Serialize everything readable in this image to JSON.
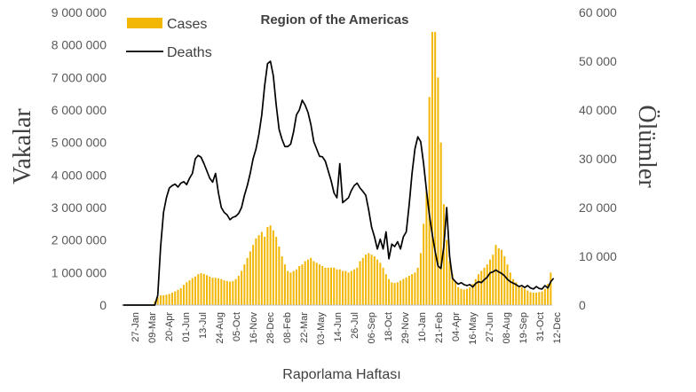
{
  "chart_data": {
    "type": "bar+line",
    "title": "Region of the Americas",
    "xlabel": "Raporlama Haftası",
    "ylabel": "Vakalar",
    "y2label": "Ölümler",
    "ylim": [
      0,
      9000000
    ],
    "y2lim": [
      0,
      60000
    ],
    "y_ticks": [
      "0",
      "1 000 000",
      "2 000 000",
      "3 000 000",
      "4 000 000",
      "5 000 000",
      "6 000 000",
      "7 000 000",
      "8 000 000",
      "9 000 000"
    ],
    "y2_ticks": [
      "0",
      "10 000",
      "20 000",
      "30 000",
      "40 000",
      "50 000",
      "60 000"
    ],
    "x_tick_labels": [
      "27-Jan",
      "09-Mar",
      "20-Apr",
      "01-Jun",
      "13-Jul",
      "24-Aug",
      "05-Oct",
      "16-Nov",
      "28-Dec",
      "08-Feb",
      "22-Mar",
      "03-May",
      "14-Jun",
      "26-Jul",
      "06-Sep",
      "18-Oct",
      "29-Nov",
      "10-Jan",
      "21-Feb",
      "04-Apr",
      "16-May",
      "27-Jun",
      "08-Aug",
      "19-Sep",
      "31-Oct",
      "12-Dec"
    ],
    "colors": {
      "cases": "#F2B705",
      "deaths": "#000000"
    },
    "series": [
      {
        "name": "Cases",
        "kind": "bar",
        "values": [
          0,
          0,
          0,
          0,
          0,
          0,
          0,
          0,
          0,
          0,
          0,
          120000,
          240000,
          300000,
          300000,
          320000,
          340000,
          380000,
          420000,
          470000,
          520000,
          620000,
          700000,
          760000,
          830000,
          880000,
          950000,
          980000,
          960000,
          920000,
          880000,
          840000,
          840000,
          820000,
          800000,
          760000,
          740000,
          720000,
          740000,
          800000,
          900000,
          1050000,
          1250000,
          1450000,
          1650000,
          1850000,
          2050000,
          2150000,
          2250000,
          2100000,
          2400000,
          2450000,
          2300000,
          2100000,
          1800000,
          1500000,
          1250000,
          1050000,
          1000000,
          1050000,
          1100000,
          1200000,
          1250000,
          1350000,
          1400000,
          1450000,
          1350000,
          1300000,
          1250000,
          1200000,
          1150000,
          1150000,
          1150000,
          1150000,
          1100000,
          1100000,
          1050000,
          1050000,
          1000000,
          1050000,
          1100000,
          1150000,
          1350000,
          1450000,
          1550000,
          1600000,
          1550000,
          1500000,
          1400000,
          1300000,
          1150000,
          950000,
          800000,
          700000,
          680000,
          700000,
          750000,
          800000,
          850000,
          900000,
          950000,
          1000000,
          1150000,
          1600000,
          2500000,
          3500000,
          6400000,
          8400000,
          8400000,
          7000000,
          5000000,
          3100000,
          2000000,
          1350000,
          950000,
          700000,
          550000,
          500000,
          480000,
          500000,
          550000,
          650000,
          800000,
          950000,
          1050000,
          1150000,
          1250000,
          1400000,
          1550000,
          1850000,
          1750000,
          1700000,
          1500000,
          1250000,
          1000000,
          800000,
          700000,
          600000,
          550000,
          500000,
          450000,
          400000,
          380000,
          380000,
          400000,
          420000,
          500000,
          650000,
          1000000
        ]
      },
      {
        "name": "Deaths",
        "kind": "line",
        "values": [
          0,
          0,
          0,
          0,
          0,
          0,
          0,
          0,
          0,
          0,
          0,
          0,
          2000,
          12000,
          19000,
          22000,
          24000,
          24500,
          24800,
          24200,
          25000,
          25300,
          24700,
          26000,
          27000,
          30000,
          30700,
          30300,
          29000,
          27500,
          26000,
          25200,
          27000,
          23000,
          20000,
          19000,
          18500,
          17500,
          18000,
          18200,
          18800,
          20000,
          22500,
          24500,
          27000,
          30000,
          32000,
          35000,
          39000,
          45000,
          49500,
          50000,
          47000,
          41000,
          36000,
          34000,
          32500,
          32500,
          33000,
          35500,
          39000,
          40000,
          42000,
          41000,
          39500,
          37000,
          33500,
          32000,
          30500,
          30400,
          29500,
          27500,
          25500,
          23000,
          22000,
          29000,
          21000,
          21500,
          22000,
          23500,
          24500,
          25000,
          24000,
          23300,
          22500,
          19500,
          16000,
          14000,
          11500,
          13500,
          11500,
          15000,
          9500,
          12500,
          12000,
          13000,
          11500,
          14000,
          15000,
          20500,
          27000,
          32000,
          34500,
          33500,
          29000,
          23500,
          18500,
          14500,
          11000,
          8000,
          7500,
          12000,
          20000,
          10000,
          5500,
          4800,
          4300,
          4600,
          4200,
          4000,
          4200,
          3700,
          4400,
          4800,
          4600,
          5200,
          5700,
          6600,
          6800,
          7200,
          6800,
          6500,
          6000,
          5300,
          4800,
          4500,
          4200,
          3800,
          4000,
          3600,
          4000,
          3500,
          3300,
          3800,
          3400,
          3300,
          4000,
          3500,
          4800,
          5500
        ]
      }
    ]
  },
  "legend": {
    "cases_label": "Cases",
    "deaths_label": "Deaths"
  }
}
